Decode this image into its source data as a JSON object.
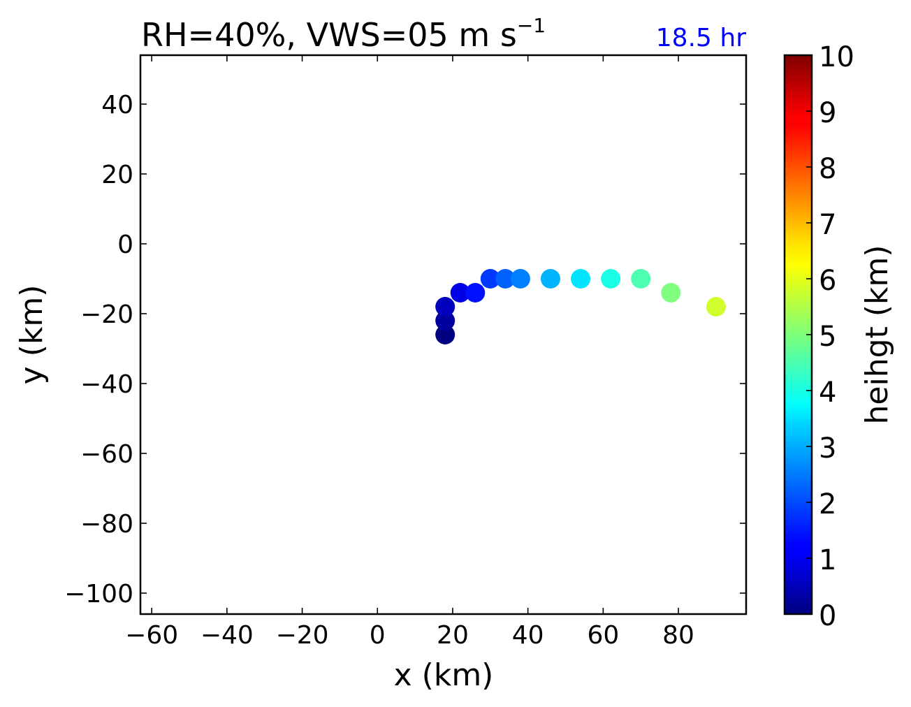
{
  "title": {
    "main": "RH=40%, VWS=05 m s",
    "sup": "−1",
    "time_label": "18.5 hr",
    "time_color": "#0000ff"
  },
  "chart_data": {
    "type": "scatter",
    "xlabel": "x (km)",
    "ylabel": "y (km)",
    "xlim": [
      -63,
      98
    ],
    "ylim": [
      -106,
      54
    ],
    "xticks": [
      -60,
      -40,
      -20,
      0,
      20,
      40,
      60,
      80
    ],
    "xtick_labels": [
      "−60",
      "−40",
      "−20",
      "0",
      "20",
      "40",
      "60",
      "80"
    ],
    "yticks": [
      40,
      20,
      0,
      -20,
      -40,
      -60,
      -80,
      -100
    ],
    "ytick_labels": [
      "40",
      "20",
      "0",
      "−20",
      "−40",
      "−60",
      "−80",
      "−100"
    ],
    "grid": false,
    "colormap": "jet",
    "points": [
      {
        "x": 18,
        "y": -26,
        "height": 0.0
      },
      {
        "x": 18,
        "y": -22,
        "height": 0.3
      },
      {
        "x": 18,
        "y": -18,
        "height": 0.6
      },
      {
        "x": 22,
        "y": -14,
        "height": 1.0
      },
      {
        "x": 26,
        "y": -14,
        "height": 1.4
      },
      {
        "x": 30,
        "y": -10,
        "height": 1.8
      },
      {
        "x": 34,
        "y": -10,
        "height": 2.2
      },
      {
        "x": 38,
        "y": -10,
        "height": 2.5
      },
      {
        "x": 46,
        "y": -10,
        "height": 3.0
      },
      {
        "x": 54,
        "y": -10,
        "height": 3.5
      },
      {
        "x": 62,
        "y": -10,
        "height": 4.0
      },
      {
        "x": 70,
        "y": -10,
        "height": 4.5
      },
      {
        "x": 78,
        "y": -14,
        "height": 5.0
      },
      {
        "x": 90,
        "y": -18,
        "height": 5.8
      }
    ],
    "colorbar": {
      "label": "heihgt (km)",
      "min": 0,
      "max": 10,
      "ticks": [
        "0",
        "1",
        "2",
        "3",
        "4",
        "5",
        "6",
        "7",
        "8",
        "9",
        "10"
      ]
    }
  }
}
